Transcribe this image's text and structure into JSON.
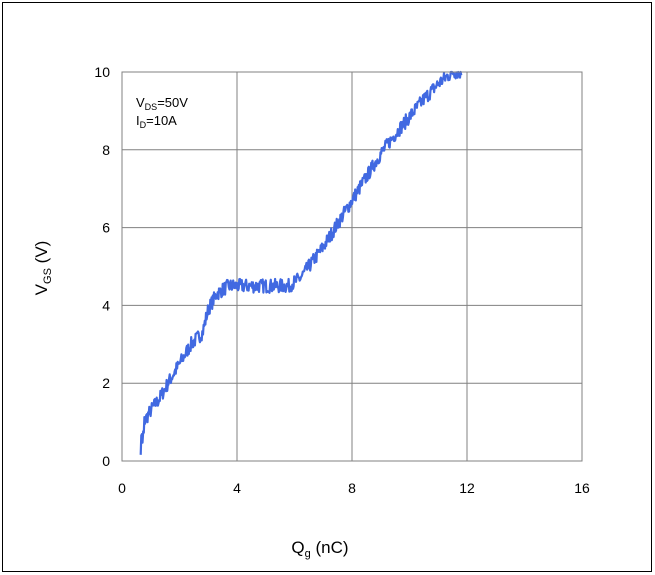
{
  "chart_data": {
    "type": "line",
    "title": "",
    "xlabel": {
      "main": "Q",
      "sub": "g",
      "unit": " (nC)"
    },
    "ylabel": {
      "main": "V",
      "sub": "GS",
      "unit": " (V)"
    },
    "xlim": [
      0,
      16
    ],
    "ylim": [
      0,
      10
    ],
    "xticks": [
      0,
      4,
      8,
      12,
      16
    ],
    "yticks": [
      0,
      2,
      4,
      6,
      8,
      10
    ],
    "xtick_labels": [
      "0",
      "4",
      "8",
      "12",
      "16"
    ],
    "ytick_labels": [
      "0",
      "2",
      "4",
      "6",
      "8",
      "10"
    ],
    "grid": true,
    "annotations": [
      {
        "main": "V",
        "sub": "DS",
        "rest": "=50V"
      },
      {
        "main": "I",
        "sub": "D",
        "rest": "=10A"
      }
    ],
    "series": [
      {
        "color": "#4169e1",
        "x": [
          0.65,
          0.8,
          1.0,
          1.3,
          1.6,
          2.0,
          2.4,
          2.8,
          3.0,
          3.3,
          3.7,
          4.2,
          5.0,
          5.8,
          6.2,
          6.6,
          7.0,
          7.5,
          8.0,
          8.5,
          9.0,
          9.5,
          10.0,
          10.5,
          11.0,
          11.5,
          11.8
        ],
        "y": [
          0.8,
          1.05,
          1.3,
          1.6,
          2.0,
          2.5,
          3.0,
          3.3,
          3.9,
          4.3,
          4.5,
          4.5,
          4.5,
          4.5,
          4.7,
          5.1,
          5.5,
          6.1,
          6.7,
          7.3,
          7.9,
          8.4,
          8.85,
          9.3,
          9.7,
          10.0,
          10.0
        ],
        "noise": 0.18
      }
    ]
  }
}
